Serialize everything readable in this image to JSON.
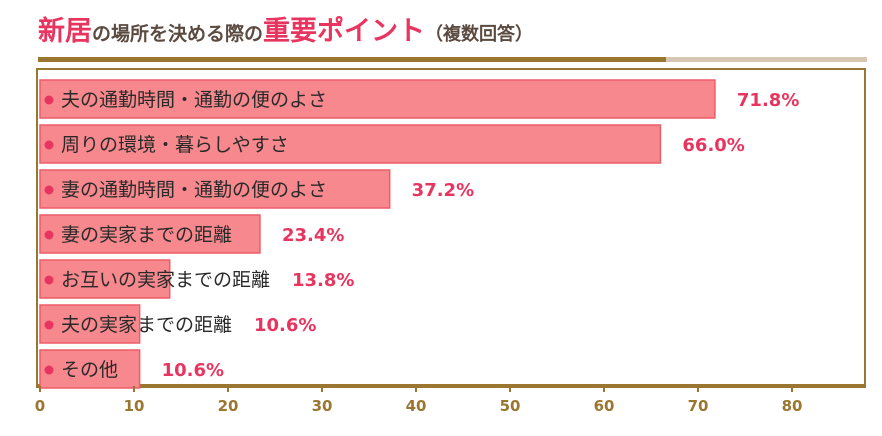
{
  "title": {
    "part1": "新居",
    "part2": "の場所を決める際の",
    "part3": "重要ポイント",
    "part4": "（複数回答）"
  },
  "colors": {
    "accent": "#e8355f",
    "bar_fill": "#f7888d",
    "bar_border": "#ee5c68",
    "dot": "#e8355f",
    "frame": "#9a7630",
    "title_text": "#5a4a40"
  },
  "chart_data": {
    "type": "bar",
    "orientation": "horizontal",
    "title": "新居の場所を決める際の重要ポイント（複数回答）",
    "categories": [
      "夫の通勤時間・通勤の便のよさ",
      "周りの環境・暮らしやすさ",
      "妻の通勤時間・通勤の便のよさ",
      "妻の実家までの距離",
      "お互いの実家までの距離",
      "夫の実家までの距離",
      "その他"
    ],
    "values": [
      71.8,
      66.0,
      37.2,
      23.4,
      13.8,
      10.6,
      10.6
    ],
    "value_labels": [
      "71.8%",
      "66.0%",
      "37.2%",
      "23.4%",
      "13.8%",
      "10.6%",
      "10.6%"
    ],
    "xlim": [
      0,
      88
    ],
    "xticks": [
      0,
      10,
      20,
      30,
      40,
      50,
      60,
      70,
      80
    ],
    "grid": false,
    "legend": "none"
  }
}
